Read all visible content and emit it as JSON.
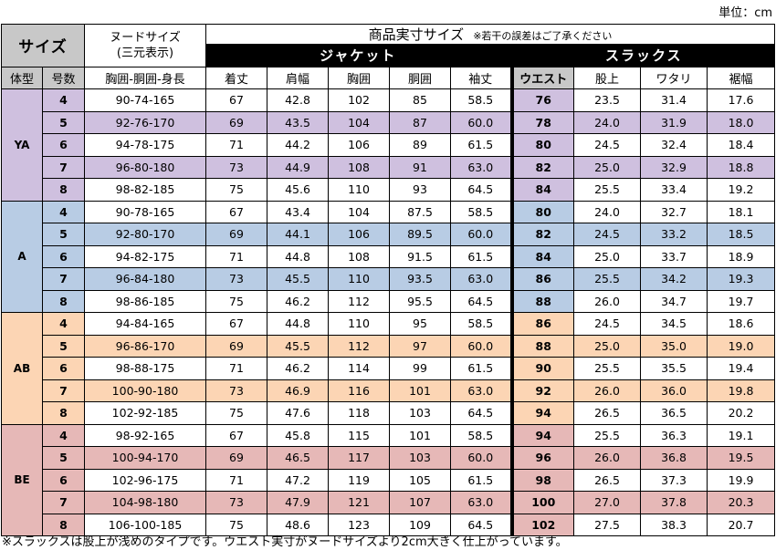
{
  "unit_label": "単位：cm",
  "header": {
    "size": "サイズ",
    "nude_line1": "ヌードサイズ",
    "nude_line2": "(三元表示)",
    "product_title": "商品実寸サイズ",
    "product_note": "※若干の誤差はご了承ください",
    "jacket": "ジャケット",
    "slacks": "スラックス",
    "body_type": "体型",
    "number": "号数",
    "nude_cols": "胸囲-胴囲-身長",
    "jacket_cols": [
      "着丈",
      "肩幅",
      "胸囲",
      "胴囲",
      "袖丈"
    ],
    "slacks_cols": [
      "ウエスト",
      "股上",
      "ワタリ",
      "裾幅"
    ]
  },
  "colors": {
    "YA": "#cfc0df",
    "A": "#b8cce4",
    "AB": "#fcd5b4",
    "BE": "#e6b8b7",
    "header_gray": "#c8c8c8"
  },
  "groups": [
    {
      "type": "YA",
      "rows": [
        [
          "4",
          "90-74-165",
          "67",
          "42.8",
          "102",
          "85",
          "58.5",
          "76",
          "23.5",
          "31.4",
          "17.6"
        ],
        [
          "5",
          "92-76-170",
          "69",
          "43.5",
          "104",
          "87",
          "60.0",
          "78",
          "24.0",
          "31.9",
          "18.0"
        ],
        [
          "6",
          "94-78-175",
          "71",
          "44.2",
          "106",
          "89",
          "61.5",
          "80",
          "24.5",
          "32.4",
          "18.4"
        ],
        [
          "7",
          "96-80-180",
          "73",
          "44.9",
          "108",
          "91",
          "63.0",
          "82",
          "25.0",
          "32.9",
          "18.8"
        ],
        [
          "8",
          "98-82-185",
          "75",
          "45.6",
          "110",
          "93",
          "64.5",
          "84",
          "25.5",
          "33.4",
          "19.2"
        ]
      ]
    },
    {
      "type": "A",
      "rows": [
        [
          "4",
          "90-78-165",
          "67",
          "43.4",
          "104",
          "87.5",
          "58.5",
          "80",
          "24.0",
          "32.7",
          "18.1"
        ],
        [
          "5",
          "92-80-170",
          "69",
          "44.1",
          "106",
          "89.5",
          "60.0",
          "82",
          "24.5",
          "33.2",
          "18.5"
        ],
        [
          "6",
          "94-82-175",
          "71",
          "44.8",
          "108",
          "91.5",
          "61.5",
          "84",
          "25.0",
          "33.7",
          "18.9"
        ],
        [
          "7",
          "96-84-180",
          "73",
          "45.5",
          "110",
          "93.5",
          "63.0",
          "86",
          "25.5",
          "34.2",
          "19.3"
        ],
        [
          "8",
          "98-86-185",
          "75",
          "46.2",
          "112",
          "95.5",
          "64.5",
          "88",
          "26.0",
          "34.7",
          "19.7"
        ]
      ]
    },
    {
      "type": "AB",
      "rows": [
        [
          "4",
          "94-84-165",
          "67",
          "44.8",
          "110",
          "95",
          "58.5",
          "86",
          "24.5",
          "34.5",
          "18.6"
        ],
        [
          "5",
          "96-86-170",
          "69",
          "45.5",
          "112",
          "97",
          "60.0",
          "88",
          "25.0",
          "35.0",
          "19.0"
        ],
        [
          "6",
          "98-88-175",
          "71",
          "46.2",
          "114",
          "99",
          "61.5",
          "90",
          "25.5",
          "35.5",
          "19.4"
        ],
        [
          "7",
          "100-90-180",
          "73",
          "46.9",
          "116",
          "101",
          "63.0",
          "92",
          "26.0",
          "36.0",
          "19.8"
        ],
        [
          "8",
          "102-92-185",
          "75",
          "47.6",
          "118",
          "103",
          "64.5",
          "94",
          "26.5",
          "36.5",
          "20.2"
        ]
      ]
    },
    {
      "type": "BE",
      "rows": [
        [
          "4",
          "98-92-165",
          "67",
          "45.8",
          "115",
          "101",
          "58.5",
          "94",
          "25.5",
          "36.3",
          "19.1"
        ],
        [
          "5",
          "100-94-170",
          "69",
          "46.5",
          "117",
          "103",
          "60.0",
          "96",
          "26.0",
          "36.8",
          "19.5"
        ],
        [
          "6",
          "102-96-175",
          "71",
          "47.2",
          "119",
          "105",
          "61.5",
          "98",
          "26.5",
          "37.3",
          "19.9"
        ],
        [
          "7",
          "104-98-180",
          "73",
          "47.9",
          "121",
          "107",
          "63.0",
          "100",
          "27.0",
          "37.8",
          "20.3"
        ],
        [
          "8",
          "106-100-185",
          "75",
          "48.6",
          "123",
          "109",
          "64.5",
          "102",
          "27.5",
          "38.3",
          "20.7"
        ]
      ]
    }
  ],
  "footnote": "※スラックスは股上が浅めのタイプです。ウエスト実寸がヌードサイズより2cm大きく仕上がっています。"
}
